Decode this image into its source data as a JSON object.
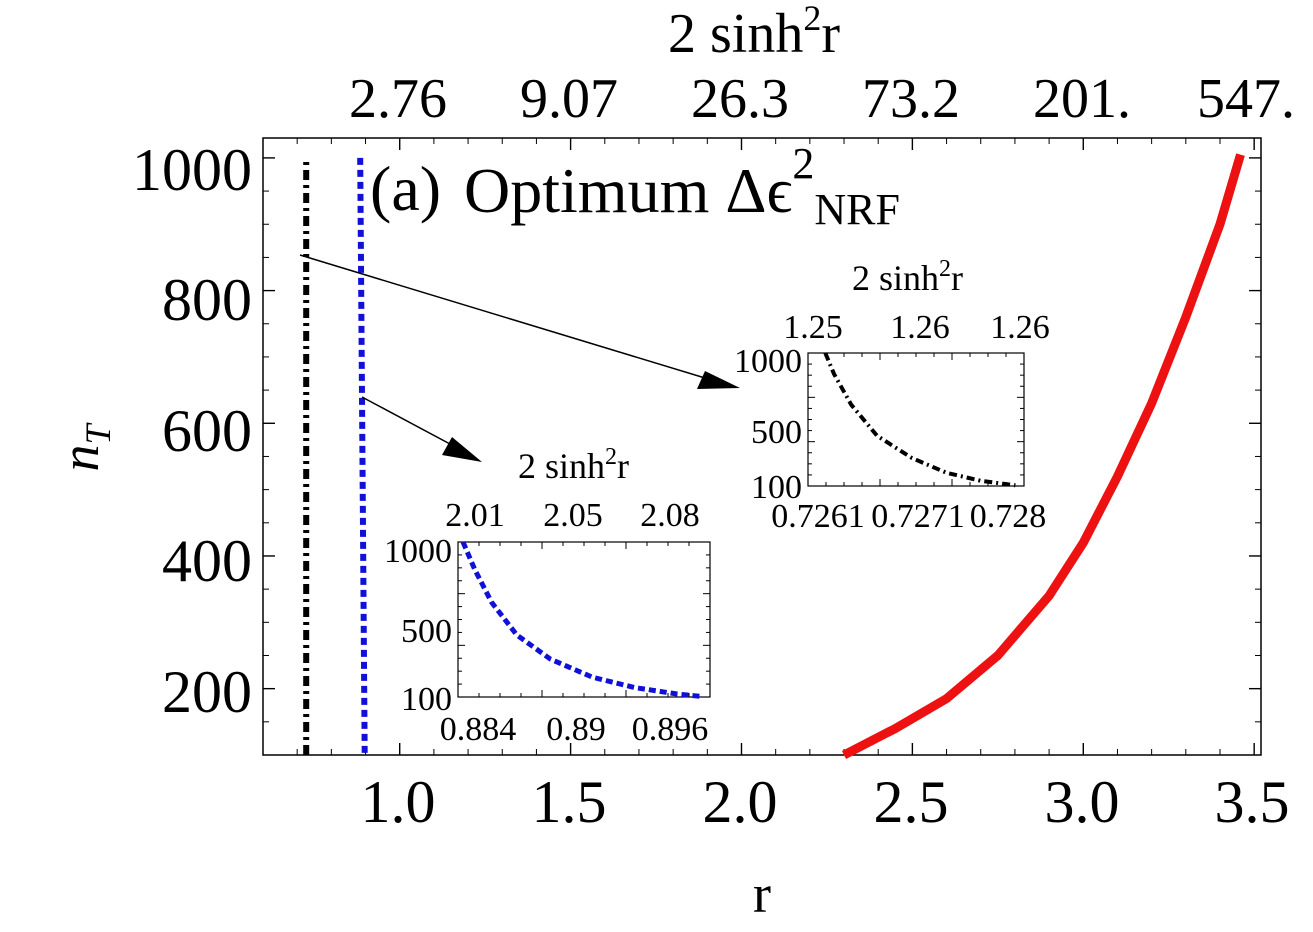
{
  "chart_data": [
    {
      "type": "line",
      "panel_label": "(a)",
      "title_main": "Optimum Δϵ",
      "title_sup": "2",
      "title_sub": "NRF",
      "xlabel": "r",
      "ylabel": "n",
      "ylabel_sub": "T",
      "top_axis_label": "2 sinh",
      "top_axis_label_sup": "2",
      "top_axis_label_tail": "r",
      "xlim": [
        0.6,
        3.52
      ],
      "ylim": [
        100,
        1030
      ],
      "x_ticks": [
        1.0,
        1.5,
        2.0,
        2.5,
        3.0,
        3.5
      ],
      "x_tick_labels": [
        "1.0",
        "1.5",
        "2.0",
        "2.5",
        "3.0",
        "3.5"
      ],
      "y_ticks": [
        200,
        400,
        600,
        800,
        1000
      ],
      "y_tick_labels": [
        "200",
        "400",
        "600",
        "800",
        "1000"
      ],
      "top_ticks_r": [
        1.0,
        1.5,
        2.0,
        2.5,
        3.0,
        3.5
      ],
      "top_tick_labels": [
        "2.76",
        "9.07",
        "26.3",
        "73.2",
        "201.",
        "547."
      ],
      "series": [
        {
          "name": "black dot-dashed",
          "color": "#000000",
          "style": "dotdash",
          "x": [
            0.7265,
            0.7265
          ],
          "y": [
            100,
            1000
          ]
        },
        {
          "name": "blue dotted",
          "color": "#1010d8",
          "style": "dotted",
          "x": [
            0.8843,
            0.8975
          ],
          "y": [
            1000,
            100
          ]
        },
        {
          "name": "red solid",
          "color": "#ee1111",
          "style": "solid",
          "x": [
            2.3,
            2.45,
            2.6,
            2.75,
            2.9,
            3.0,
            3.1,
            3.2,
            3.3,
            3.4,
            3.46
          ],
          "y": [
            100,
            140,
            185,
            250,
            340,
            420,
            520,
            630,
            760,
            900,
            1005
          ]
        }
      ]
    },
    {
      "type": "line",
      "inset": "black",
      "top_axis_label": "2 sinh",
      "top_axis_label_sup": "2",
      "top_axis_label_tail": "r",
      "xlim": [
        0.7259,
        0.7284
      ],
      "ylim": [
        100,
        1000
      ],
      "x_tick_labels": [
        "0.7261",
        "0.7271",
        "0.728"
      ],
      "y_tick_labels": [
        "1000",
        "500",
        "100"
      ],
      "top_tick_labels": [
        "1.25",
        "1.26",
        "1.26"
      ],
      "series": [
        {
          "name": "black dot-dashed",
          "color": "#000000",
          "style": "dotdash",
          "x": [
            0.7261,
            0.7262,
            0.7264,
            0.7267,
            0.7271,
            0.7275,
            0.7279,
            0.7283
          ],
          "y": [
            1000,
            860,
            650,
            440,
            290,
            190,
            135,
            105
          ]
        }
      ]
    },
    {
      "type": "line",
      "inset": "blue",
      "top_axis_label": "2 sinh",
      "top_axis_label_sup": "2",
      "top_axis_label_tail": "r",
      "xlim": [
        0.8835,
        0.8985
      ],
      "ylim": [
        100,
        1000
      ],
      "x_tick_labels": [
        "0.884",
        "0.89",
        "0.896"
      ],
      "y_tick_labels": [
        "1000",
        "500",
        "100"
      ],
      "top_tick_labels": [
        "2.01",
        "2.05",
        "2.08"
      ],
      "series": [
        {
          "name": "blue dotted",
          "color": "#1010d8",
          "style": "dotted",
          "x": [
            0.8838,
            0.8845,
            0.8855,
            0.887,
            0.889,
            0.8915,
            0.894,
            0.8965,
            0.898
          ],
          "y": [
            1000,
            840,
            650,
            460,
            320,
            215,
            155,
            118,
            103
          ]
        }
      ]
    }
  ]
}
